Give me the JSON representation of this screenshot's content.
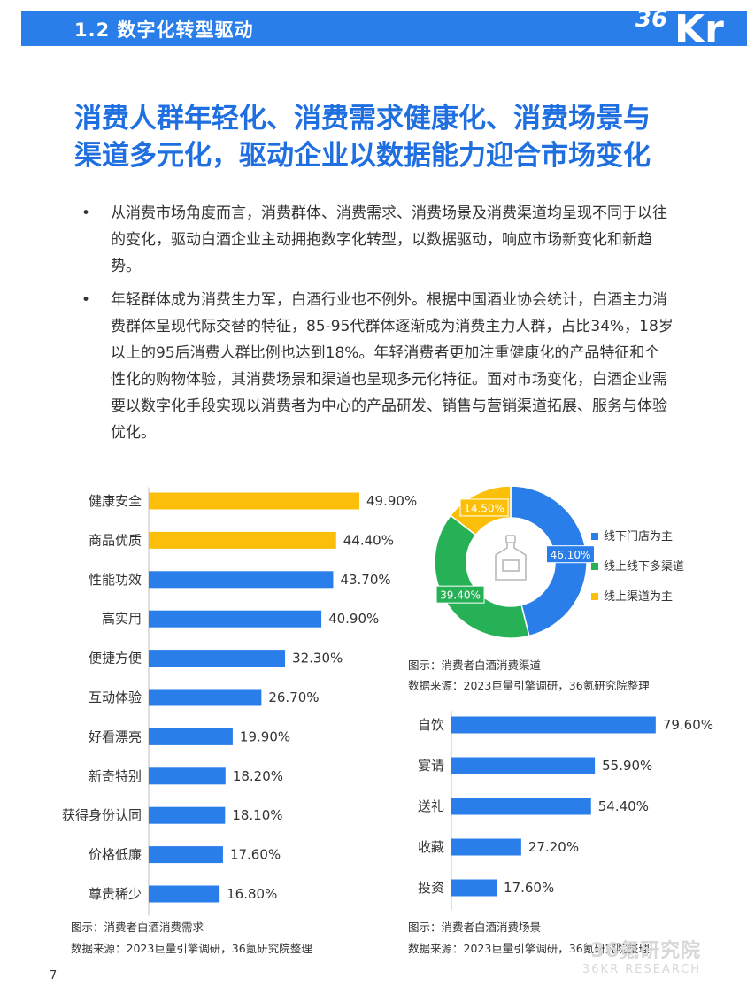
{
  "header": {
    "section_title": "1.2 数字化转型驱动",
    "logo_text": "36Kr",
    "color": "#2a7ee9"
  },
  "headline": {
    "line1": "消费人群年轻化、消费需求健康化、消费场景与",
    "line2": "渠道多元化，驱动企业以数据能力迎合市场变化"
  },
  "bullets": [
    {
      "symbol": "•",
      "text": "从消费市场角度而言，消费群体、消费需求、消费场景及消费渠道均呈现不同于以往的变化，驱动白酒企业主动拥抱数字化转型，以数据驱动，响应市场新变化和新趋势。"
    },
    {
      "symbol": "•",
      "text": "年轻群体成为消费生力军，白酒行业也不例外。根据中国酒业协会统计，白酒主力消费群体呈现代际交替的特征，85-95代群体逐渐成为消费主力人群，占比34%，18岁以上的95后消费人群比例也达到18%。年轻消费者更加注重健康化的产品特征和个性化的购物体验，其消费场景和渠道也呈现多元化特征。面对市场变化，白酒企业需要以数字化手段实现以消费者为中心的产品研发、销售与营销渠道拓展、服务与体验优化。"
    }
  ],
  "chart_data": [
    {
      "type": "bar",
      "orientation": "horizontal",
      "categories": [
        "健康安全",
        "商品优质",
        "性能功效",
        "高实用",
        "便捷方便",
        "互动体验",
        "好看漂亮",
        "新奇特别",
        "获得身份认同",
        "价格低廉",
        "尊贵稀少"
      ],
      "values": [
        49.9,
        44.4,
        43.7,
        40.9,
        32.3,
        26.7,
        19.9,
        18.2,
        18.1,
        17.6,
        16.8
      ],
      "labels": [
        "49.90%",
        "44.40%",
        "43.70%",
        "40.90%",
        "32.30%",
        "26.70%",
        "19.90%",
        "18.20%",
        "18.10%",
        "17.60%",
        "16.80%"
      ],
      "colors": [
        "#fbbf0a",
        "#fbbf0a",
        "#2a7ee9",
        "#2a7ee9",
        "#2a7ee9",
        "#2a7ee9",
        "#2a7ee9",
        "#2a7ee9",
        "#2a7ee9",
        "#2a7ee9",
        "#2a7ee9"
      ],
      "caption": "图示：消费者白酒消费需求",
      "source": "数据来源：2023巨量引擎调研，36氪研究院整理"
    },
    {
      "type": "pie",
      "variant": "donut",
      "categories": [
        "线下门店为主",
        "线上线下多渠道",
        "线上渠道为主"
      ],
      "values": [
        46.1,
        39.4,
        14.5
      ],
      "labels": [
        "46.10%",
        "39.40%",
        "14.50%"
      ],
      "colors": [
        "#2a7ee9",
        "#27b157",
        "#fbbf0a"
      ],
      "legend": "right",
      "caption": "图示：消费者白酒消费渠道",
      "source": "数据来源：2023巨量引擎调研，36氪研究院整理"
    },
    {
      "type": "bar",
      "orientation": "horizontal",
      "categories": [
        "自饮",
        "宴请",
        "送礼",
        "收藏",
        "投资"
      ],
      "values": [
        79.6,
        55.9,
        54.4,
        27.2,
        17.6
      ],
      "labels": [
        "79.60%",
        "55.90%",
        "54.40%",
        "27.20%",
        "17.60%"
      ],
      "colors": [
        "#2a7ee9",
        "#2a7ee9",
        "#2a7ee9",
        "#2a7ee9",
        "#2a7ee9"
      ],
      "caption": "图示：消费者白酒消费场景",
      "source": "数据来源：2023巨量引擎调研，36氪研究院整理"
    }
  ],
  "footer": {
    "page_number": "7",
    "watermark_line1": "36氪研究院",
    "watermark_line2": "36KR RESEARCH"
  }
}
